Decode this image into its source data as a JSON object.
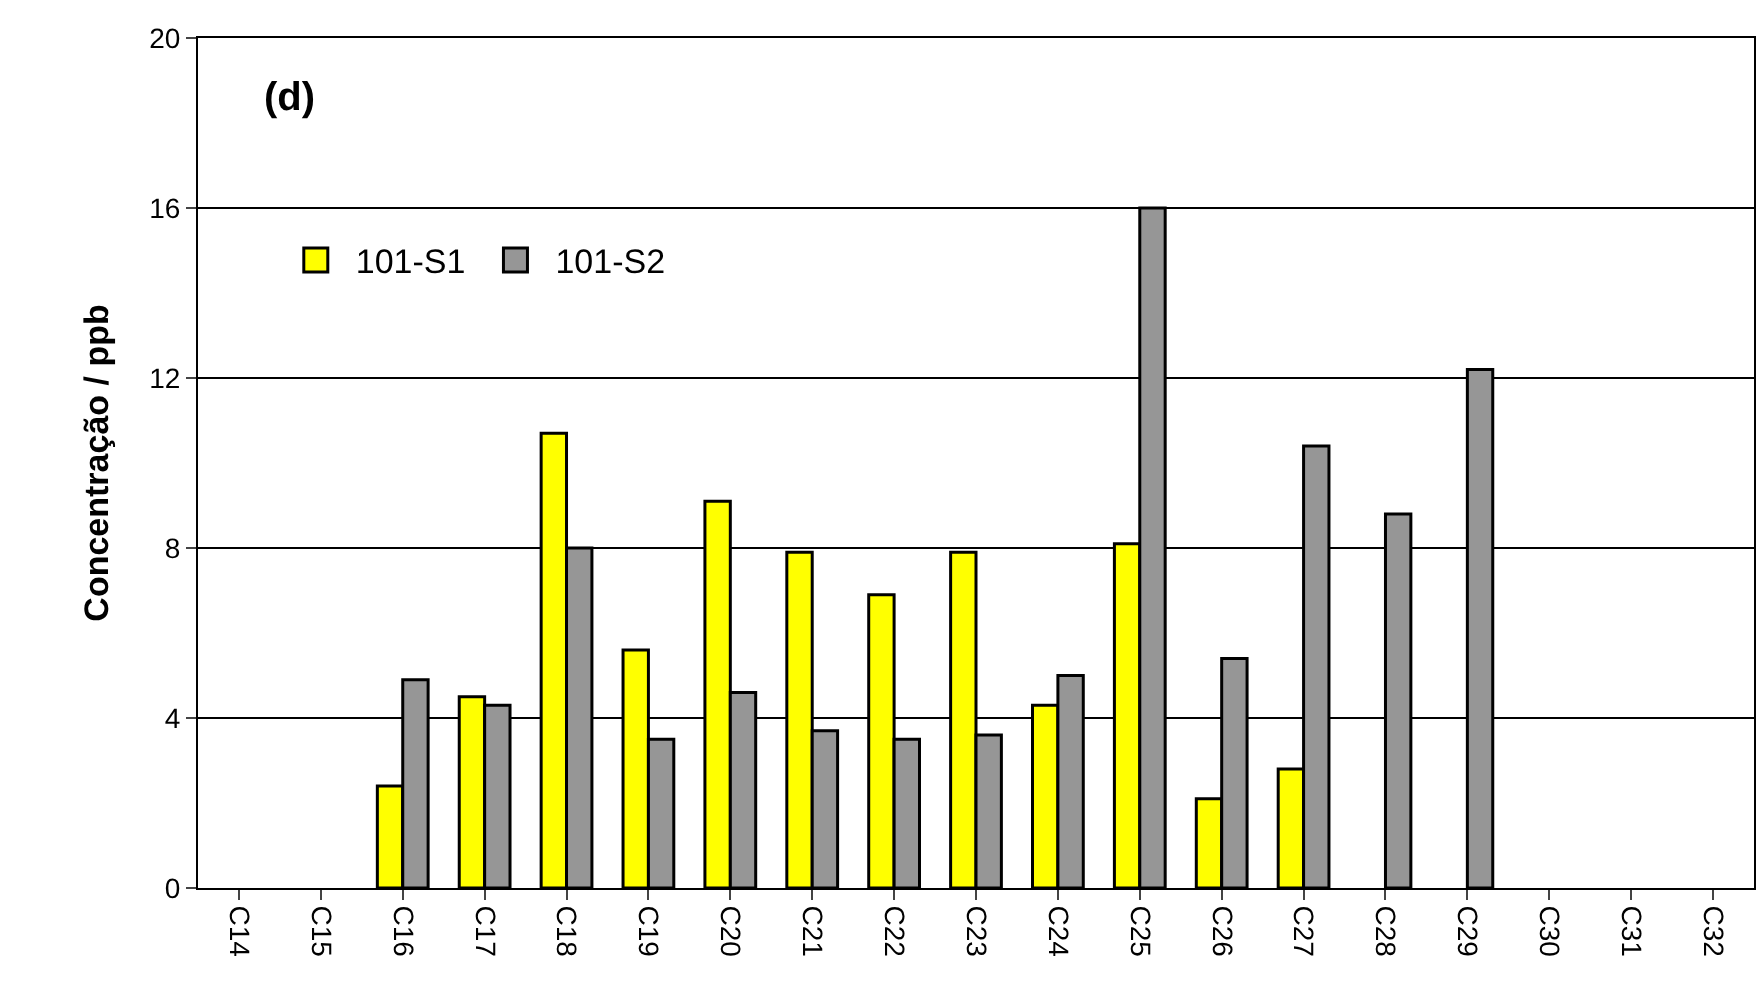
{
  "chart_data": {
    "type": "bar",
    "ylabel": "Concentração / ppb",
    "annotations": [
      "(d)"
    ],
    "categories": [
      "C14",
      "C15",
      "C16",
      "C17",
      "C18",
      "C19",
      "C20",
      "C21",
      "C22",
      "C23",
      "C24",
      "C25",
      "C26",
      "C27",
      "C28",
      "C29",
      "C30",
      "C31",
      "C32"
    ],
    "series": [
      {
        "name": "101-S1",
        "color": "#ffff00",
        "values": [
          null,
          null,
          2.4,
          4.5,
          10.7,
          5.6,
          9.1,
          7.9,
          6.9,
          7.9,
          4.3,
          8.1,
          2.1,
          2.8,
          null,
          null,
          null,
          null,
          null
        ]
      },
      {
        "name": "101-S2",
        "color": "#969696",
        "values": [
          null,
          null,
          4.9,
          4.3,
          8.0,
          3.5,
          4.6,
          3.7,
          3.5,
          3.6,
          5.0,
          16.0,
          5.4,
          10.4,
          8.8,
          12.2,
          null,
          null,
          null
        ]
      }
    ],
    "ylim": [
      0,
      20
    ],
    "yticks": [
      0,
      4,
      8,
      12,
      16,
      20
    ],
    "grid": "y",
    "legend": "top left"
  }
}
